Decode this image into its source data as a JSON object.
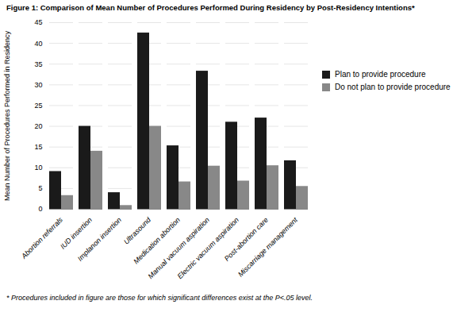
{
  "chart_data": {
    "type": "bar",
    "title": "Figure 1: Comparison of Mean Number of Procedures Performed During Residency by Post-Residency Intentions*",
    "ylabel": "Mean Number of Procedures Performed in Residency",
    "footnote": "* Procedures included in figure are those for which significant differences exist at the P<.05 level.",
    "categories": [
      "Abortion referrals",
      "IUD insertion",
      "Implanon insertion",
      "Ultrasound",
      "Medication abortion",
      "Manual vacuum aspiration",
      "Electric vacuum aspiration",
      "Post-abortion care",
      "Miscarriage management"
    ],
    "series": [
      {
        "name": "Plan to provide procedure",
        "color": "#1a1a1a",
        "values": [
          9.1,
          20.0,
          4.0,
          42.5,
          15.3,
          33.3,
          21.0,
          22.0,
          11.7
        ]
      },
      {
        "name": "Do not plan to provide procedure",
        "color": "#888888",
        "values": [
          3.3,
          14.0,
          0.9,
          20.0,
          6.6,
          10.4,
          6.8,
          10.5,
          5.5
        ]
      }
    ],
    "ylim": [
      0,
      45
    ],
    "yticks": [
      0,
      5,
      10,
      15,
      20,
      25,
      30,
      35,
      40,
      45
    ],
    "grid": true,
    "legend": "right"
  }
}
